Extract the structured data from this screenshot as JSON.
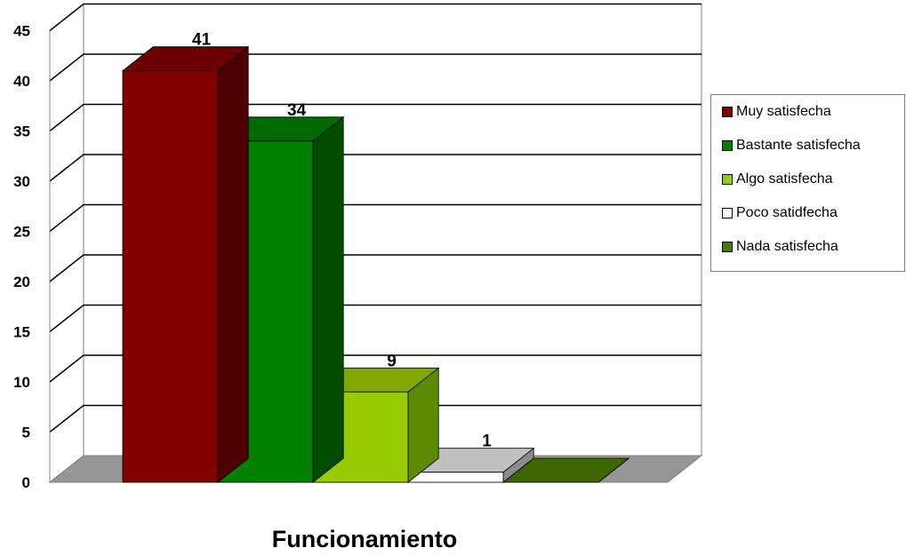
{
  "chart_data": {
    "type": "bar",
    "categories": [
      "Muy satisfecha",
      "Bastante satisfecha",
      "Algo satisfecha",
      "Poco satidfecha",
      "Nada satisfecha"
    ],
    "values": [
      41,
      34,
      9,
      1,
      0
    ],
    "data_labels": [
      "41",
      "34",
      "9",
      "1",
      ""
    ],
    "xlabel": "Funcionamiento",
    "ylim": [
      0,
      45
    ],
    "yticks": [
      0,
      5,
      10,
      15,
      20,
      25,
      30,
      35,
      40,
      45
    ],
    "legend_position": "right",
    "grid": true,
    "three_d": true,
    "colors": [
      "#800000",
      "#008000",
      "#99CC00",
      "#FFFFFF",
      "#4C7A00"
    ],
    "side_colors": [
      "#4D0000",
      "#004D00",
      "#5C8A00",
      "#8C8C8C",
      "#2E4A00"
    ],
    "top_colors": [
      "#6B0000",
      "#006B00",
      "#80A800",
      "#C0C0C0",
      "#3F6600"
    ]
  }
}
